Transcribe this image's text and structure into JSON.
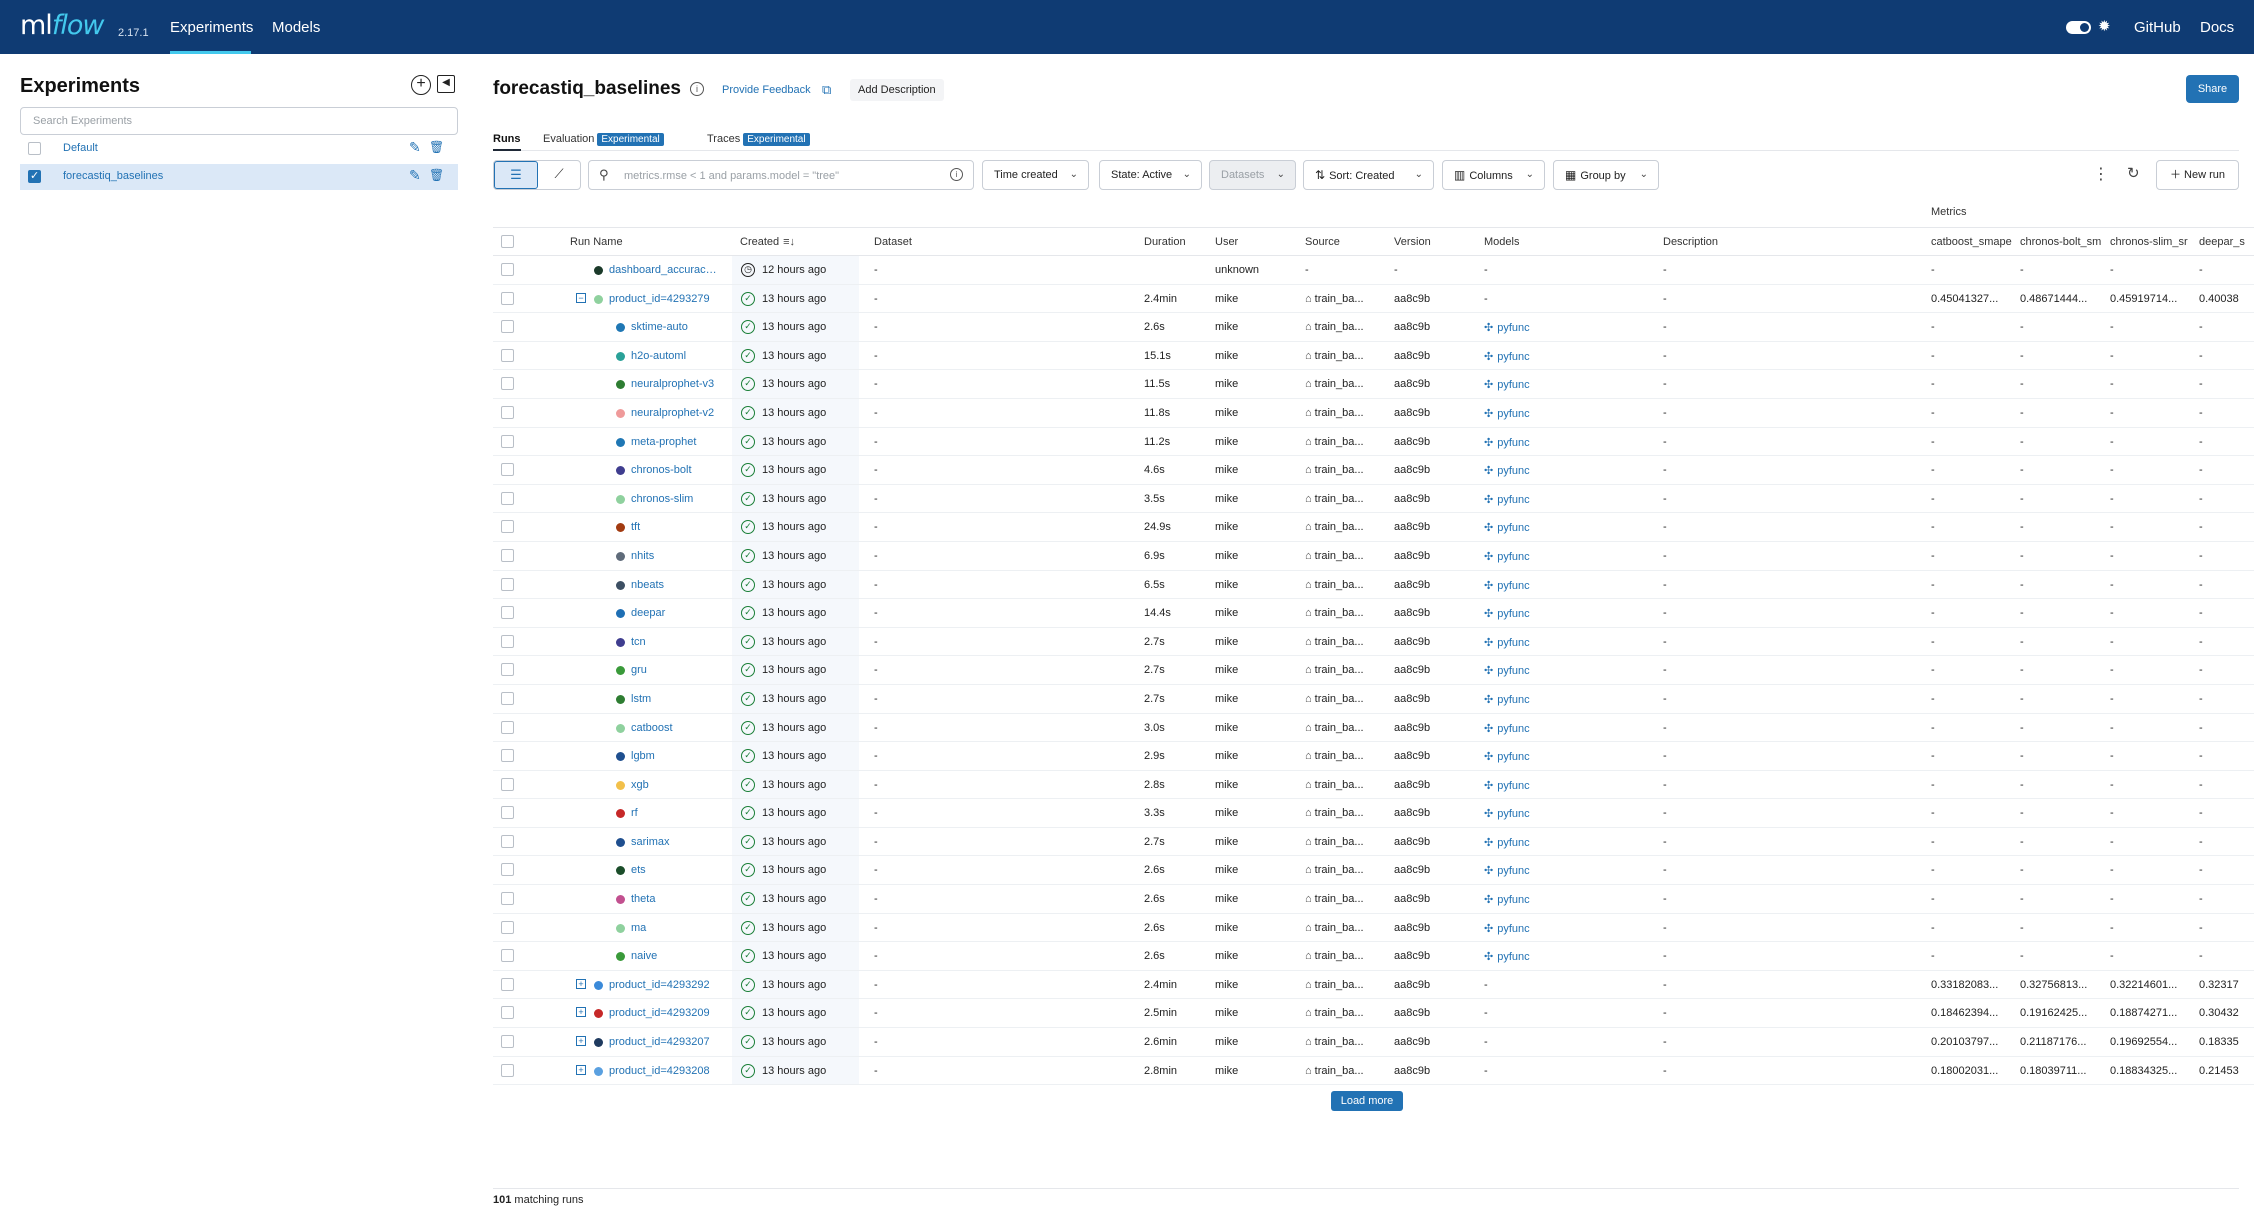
{
  "header": {
    "logo_ml": "ml",
    "logo_flow": "flow",
    "version": "2.17.1",
    "nav": [
      {
        "label": "Experiments"
      },
      {
        "label": "Models"
      }
    ],
    "links": [
      {
        "label": "GitHub"
      },
      {
        "label": "Docs"
      }
    ],
    "accent_color": "#43c9ed",
    "bar_color": "#0f3b73"
  },
  "sidebar": {
    "title": "Experiments",
    "search_placeholder": "Search Experiments",
    "experiments": [
      {
        "name": "Default",
        "checked": false
      },
      {
        "name": "forecastiq_baselines",
        "checked": true
      }
    ]
  },
  "main": {
    "title": "forecastiq_baselines",
    "feedback_label": "Provide Feedback",
    "add_description_label": "Add Description",
    "share_label": "Share",
    "tabs": [
      {
        "label": "Runs"
      },
      {
        "label": "Evaluation",
        "badge": "Experimental"
      },
      {
        "label": "Traces",
        "badge": "Experimental"
      }
    ],
    "filter_placeholder": "metrics.rmse < 1 and params.model = \"tree\"",
    "toolbar": {
      "time_created": "Time created",
      "state": "State: Active",
      "datasets": "Datasets",
      "sort": "Sort: Created",
      "columns": "Columns",
      "group_by": "Group by",
      "new_run": "New run"
    },
    "metrics_group_label": "Metrics",
    "columns": [
      "Run Name",
      "Created",
      "Dataset",
      "Duration",
      "User",
      "Source",
      "Version",
      "Models",
      "Description",
      "catboost_smape",
      "chronos-bolt_sm",
      "chronos-slim_sr",
      "deepar_s"
    ],
    "runs": [
      {
        "name": "dashboard_accuracy...",
        "level": 0,
        "dot": "#1b3a2a",
        "status": "clock",
        "created": "12 hours ago",
        "dataset": "-",
        "duration": "",
        "user": "unknown",
        "source": "-",
        "version": "-",
        "model": "-",
        "description": "-",
        "m1": "-",
        "m2": "-",
        "m3": "-",
        "m4": "-"
      },
      {
        "name": "product_id=4293279",
        "level": 0,
        "expand": "−",
        "dot": "#8fd19e",
        "status": "ok",
        "created": "13 hours ago",
        "dataset": "-",
        "duration": "2.4min",
        "user": "mike",
        "source": "train_ba...",
        "version": "aa8c9b",
        "model": "-",
        "description": "-",
        "m1": "0.45041327...",
        "m2": "0.48671444...",
        "m3": "0.45919714...",
        "m4": "0.40038"
      },
      {
        "name": "sktime-auto",
        "level": 1,
        "dot": "#1f77b4",
        "status": "ok",
        "created": "13 hours ago",
        "dataset": "-",
        "duration": "2.6s",
        "user": "mike",
        "source": "train_ba...",
        "version": "aa8c9b",
        "model": "pyfunc",
        "description": "-",
        "m1": "-",
        "m2": "-",
        "m3": "-",
        "m4": "-"
      },
      {
        "name": "h2o-automl",
        "level": 1,
        "dot": "#2aa198",
        "status": "ok",
        "created": "13 hours ago",
        "dataset": "-",
        "duration": "15.1s",
        "user": "mike",
        "source": "train_ba...",
        "version": "aa8c9b",
        "model": "pyfunc",
        "description": "-",
        "m1": "-",
        "m2": "-",
        "m3": "-",
        "m4": "-"
      },
      {
        "name": "neuralprophet-v3",
        "level": 1,
        "dot": "#2e7d32",
        "status": "ok",
        "created": "13 hours ago",
        "dataset": "-",
        "duration": "11.5s",
        "user": "mike",
        "source": "train_ba...",
        "version": "aa8c9b",
        "model": "pyfunc",
        "description": "-",
        "m1": "-",
        "m2": "-",
        "m3": "-",
        "m4": "-"
      },
      {
        "name": "neuralprophet-v2",
        "level": 1,
        "dot": "#ef9a9a",
        "status": "ok",
        "created": "13 hours ago",
        "dataset": "-",
        "duration": "11.8s",
        "user": "mike",
        "source": "train_ba...",
        "version": "aa8c9b",
        "model": "pyfunc",
        "description": "-",
        "m1": "-",
        "m2": "-",
        "m3": "-",
        "m4": "-"
      },
      {
        "name": "meta-prophet",
        "level": 1,
        "dot": "#1f77b4",
        "status": "ok",
        "created": "13 hours ago",
        "dataset": "-",
        "duration": "11.2s",
        "user": "mike",
        "source": "train_ba...",
        "version": "aa8c9b",
        "model": "pyfunc",
        "description": "-",
        "m1": "-",
        "m2": "-",
        "m3": "-",
        "m4": "-"
      },
      {
        "name": "chronos-bolt",
        "level": 1,
        "dot": "#3f3d8f",
        "status": "ok",
        "created": "13 hours ago",
        "dataset": "-",
        "duration": "4.6s",
        "user": "mike",
        "source": "train_ba...",
        "version": "aa8c9b",
        "model": "pyfunc",
        "description": "-",
        "m1": "-",
        "m2": "-",
        "m3": "-",
        "m4": "-"
      },
      {
        "name": "chronos-slim",
        "level": 1,
        "dot": "#8fd19e",
        "status": "ok",
        "created": "13 hours ago",
        "dataset": "-",
        "duration": "3.5s",
        "user": "mike",
        "source": "train_ba...",
        "version": "aa8c9b",
        "model": "pyfunc",
        "description": "-",
        "m1": "-",
        "m2": "-",
        "m3": "-",
        "m4": "-"
      },
      {
        "name": "tft",
        "level": 1,
        "dot": "#a23b11",
        "status": "ok",
        "created": "13 hours ago",
        "dataset": "-",
        "duration": "24.9s",
        "user": "mike",
        "source": "train_ba...",
        "version": "aa8c9b",
        "model": "pyfunc",
        "description": "-",
        "m1": "-",
        "m2": "-",
        "m3": "-",
        "m4": "-"
      },
      {
        "name": "nhits",
        "level": 1,
        "dot": "#5f6b7a",
        "status": "ok",
        "created": "13 hours ago",
        "dataset": "-",
        "duration": "6.9s",
        "user": "mike",
        "source": "train_ba...",
        "version": "aa8c9b",
        "model": "pyfunc",
        "description": "-",
        "m1": "-",
        "m2": "-",
        "m3": "-",
        "m4": "-"
      },
      {
        "name": "nbeats",
        "level": 1,
        "dot": "#3d4f63",
        "status": "ok",
        "created": "13 hours ago",
        "dataset": "-",
        "duration": "6.5s",
        "user": "mike",
        "source": "train_ba...",
        "version": "aa8c9b",
        "model": "pyfunc",
        "description": "-",
        "m1": "-",
        "m2": "-",
        "m3": "-",
        "m4": "-"
      },
      {
        "name": "deepar",
        "level": 1,
        "dot": "#1f6fb4",
        "status": "ok",
        "created": "13 hours ago",
        "dataset": "-",
        "duration": "14.4s",
        "user": "mike",
        "source": "train_ba...",
        "version": "aa8c9b",
        "model": "pyfunc",
        "description": "-",
        "m1": "-",
        "m2": "-",
        "m3": "-",
        "m4": "-"
      },
      {
        "name": "tcn",
        "level": 1,
        "dot": "#3f3d8f",
        "status": "ok",
        "created": "13 hours ago",
        "dataset": "-",
        "duration": "2.7s",
        "user": "mike",
        "source": "train_ba...",
        "version": "aa8c9b",
        "model": "pyfunc",
        "description": "-",
        "m1": "-",
        "m2": "-",
        "m3": "-",
        "m4": "-"
      },
      {
        "name": "gru",
        "level": 1,
        "dot": "#3a9a3a",
        "status": "ok",
        "created": "13 hours ago",
        "dataset": "-",
        "duration": "2.7s",
        "user": "mike",
        "source": "train_ba...",
        "version": "aa8c9b",
        "model": "pyfunc",
        "description": "-",
        "m1": "-",
        "m2": "-",
        "m3": "-",
        "m4": "-"
      },
      {
        "name": "lstm",
        "level": 1,
        "dot": "#2e7d32",
        "status": "ok",
        "created": "13 hours ago",
        "dataset": "-",
        "duration": "2.7s",
        "user": "mike",
        "source": "train_ba...",
        "version": "aa8c9b",
        "model": "pyfunc",
        "description": "-",
        "m1": "-",
        "m2": "-",
        "m3": "-",
        "m4": "-"
      },
      {
        "name": "catboost",
        "level": 1,
        "dot": "#8fd19e",
        "status": "ok",
        "created": "13 hours ago",
        "dataset": "-",
        "duration": "3.0s",
        "user": "mike",
        "source": "train_ba...",
        "version": "aa8c9b",
        "model": "pyfunc",
        "description": "-",
        "m1": "-",
        "m2": "-",
        "m3": "-",
        "m4": "-"
      },
      {
        "name": "lgbm",
        "level": 1,
        "dot": "#1f4f8f",
        "status": "ok",
        "created": "13 hours ago",
        "dataset": "-",
        "duration": "2.9s",
        "user": "mike",
        "source": "train_ba...",
        "version": "aa8c9b",
        "model": "pyfunc",
        "description": "-",
        "m1": "-",
        "m2": "-",
        "m3": "-",
        "m4": "-"
      },
      {
        "name": "xgb",
        "level": 1,
        "dot": "#f2c04a",
        "status": "ok",
        "created": "13 hours ago",
        "dataset": "-",
        "duration": "2.8s",
        "user": "mike",
        "source": "train_ba...",
        "version": "aa8c9b",
        "model": "pyfunc",
        "description": "-",
        "m1": "-",
        "m2": "-",
        "m3": "-",
        "m4": "-"
      },
      {
        "name": "rf",
        "level": 1,
        "dot": "#c62828",
        "status": "ok",
        "created": "13 hours ago",
        "dataset": "-",
        "duration": "3.3s",
        "user": "mike",
        "source": "train_ba...",
        "version": "aa8c9b",
        "model": "pyfunc",
        "description": "-",
        "m1": "-",
        "m2": "-",
        "m3": "-",
        "m4": "-"
      },
      {
        "name": "sarimax",
        "level": 1,
        "dot": "#1f4f8f",
        "status": "ok",
        "created": "13 hours ago",
        "dataset": "-",
        "duration": "2.7s",
        "user": "mike",
        "source": "train_ba...",
        "version": "aa8c9b",
        "model": "pyfunc",
        "description": "-",
        "m1": "-",
        "m2": "-",
        "m3": "-",
        "m4": "-"
      },
      {
        "name": "ets",
        "level": 1,
        "dot": "#1b4d2a",
        "status": "ok",
        "created": "13 hours ago",
        "dataset": "-",
        "duration": "2.6s",
        "user": "mike",
        "source": "train_ba...",
        "version": "aa8c9b",
        "model": "pyfunc",
        "description": "-",
        "m1": "-",
        "m2": "-",
        "m3": "-",
        "m4": "-"
      },
      {
        "name": "theta",
        "level": 1,
        "dot": "#c2508f",
        "status": "ok",
        "created": "13 hours ago",
        "dataset": "-",
        "duration": "2.6s",
        "user": "mike",
        "source": "train_ba...",
        "version": "aa8c9b",
        "model": "pyfunc",
        "description": "-",
        "m1": "-",
        "m2": "-",
        "m3": "-",
        "m4": "-"
      },
      {
        "name": "ma",
        "level": 1,
        "dot": "#8fd19e",
        "status": "ok",
        "created": "13 hours ago",
        "dataset": "-",
        "duration": "2.6s",
        "user": "mike",
        "source": "train_ba...",
        "version": "aa8c9b",
        "model": "pyfunc",
        "description": "-",
        "m1": "-",
        "m2": "-",
        "m3": "-",
        "m4": "-"
      },
      {
        "name": "naive",
        "level": 1,
        "dot": "#3a9a3a",
        "status": "ok",
        "created": "13 hours ago",
        "dataset": "-",
        "duration": "2.6s",
        "user": "mike",
        "source": "train_ba...",
        "version": "aa8c9b",
        "model": "pyfunc",
        "description": "-",
        "m1": "-",
        "m2": "-",
        "m3": "-",
        "m4": "-"
      },
      {
        "name": "product_id=4293292",
        "level": 0,
        "expand": "+",
        "dot": "#3b8ad9",
        "status": "ok",
        "created": "13 hours ago",
        "dataset": "-",
        "duration": "2.4min",
        "user": "mike",
        "source": "train_ba...",
        "version": "aa8c9b",
        "model": "-",
        "description": "-",
        "m1": "0.33182083...",
        "m2": "0.32756813...",
        "m3": "0.32214601...",
        "m4": "0.32317"
      },
      {
        "name": "product_id=4293209",
        "level": 0,
        "expand": "+",
        "dot": "#c62828",
        "status": "ok",
        "created": "13 hours ago",
        "dataset": "-",
        "duration": "2.5min",
        "user": "mike",
        "source": "train_ba...",
        "version": "aa8c9b",
        "model": "-",
        "description": "-",
        "m1": "0.18462394...",
        "m2": "0.19162425...",
        "m3": "0.18874271...",
        "m4": "0.30432"
      },
      {
        "name": "product_id=4293207",
        "level": 0,
        "expand": "+",
        "dot": "#1f3a5f",
        "status": "ok",
        "created": "13 hours ago",
        "dataset": "-",
        "duration": "2.6min",
        "user": "mike",
        "source": "train_ba...",
        "version": "aa8c9b",
        "model": "-",
        "description": "-",
        "m1": "0.20103797...",
        "m2": "0.21187176...",
        "m3": "0.19692554...",
        "m4": "0.18335"
      },
      {
        "name": "product_id=4293208",
        "level": 0,
        "expand": "+",
        "dot": "#5aa0e0",
        "status": "ok",
        "created": "13 hours ago",
        "dataset": "-",
        "duration": "2.8min",
        "user": "mike",
        "source": "train_ba...",
        "version": "aa8c9b",
        "model": "-",
        "description": "-",
        "m1": "0.18002031...",
        "m2": "0.18039711...",
        "m3": "0.18834325...",
        "m4": "0.21453"
      }
    ],
    "load_more_label": "Load more",
    "matching_count": "101",
    "matching_suffix": "matching runs"
  }
}
